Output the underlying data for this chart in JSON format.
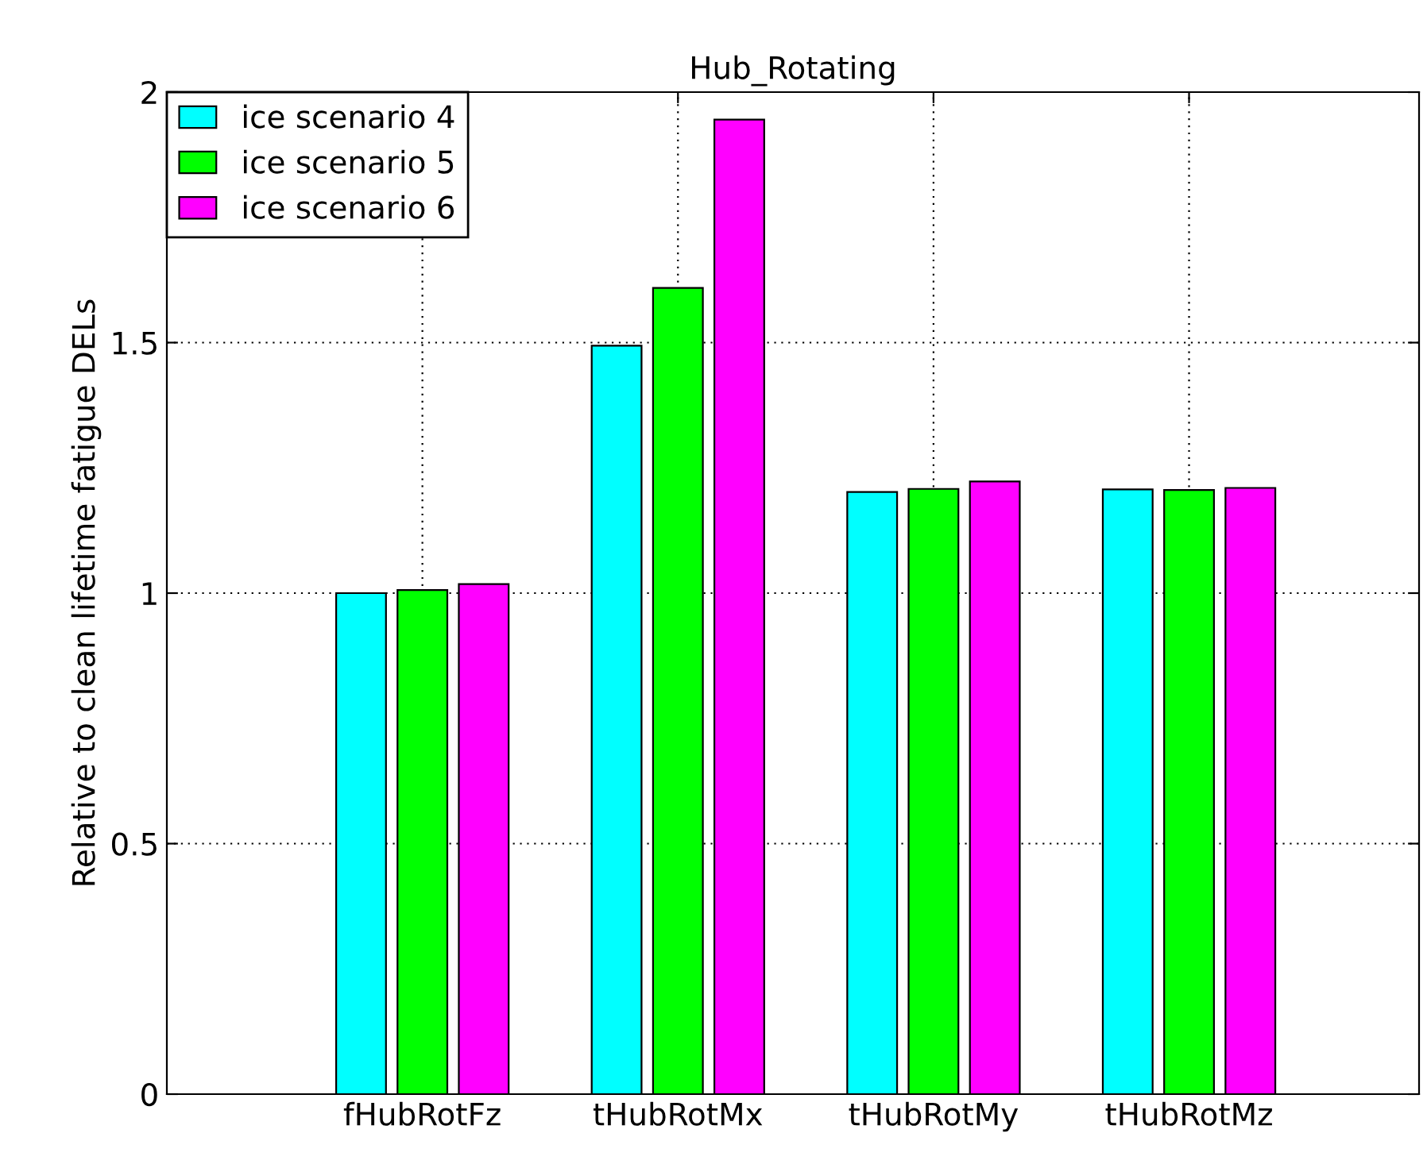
{
  "chart_data": {
    "type": "bar",
    "title": "Hub_Rotating",
    "ylabel": "Relative to clean lifetime fatigue DELs",
    "categories": [
      "fHubRotFz",
      "tHubRotMx",
      "tHubRotMy",
      "tHubRotMz"
    ],
    "series": [
      {
        "name": "ice scenario 4",
        "color": "#00ffff",
        "values": [
          1.0,
          1.494,
          1.202,
          1.207
        ]
      },
      {
        "name": "ice scenario 5",
        "color": "#00ff00",
        "values": [
          1.006,
          1.609,
          1.208,
          1.206
        ]
      },
      {
        "name": "ice scenario 6",
        "color": "#ff00ff",
        "values": [
          1.018,
          1.945,
          1.223,
          1.21
        ]
      }
    ],
    "ylim": [
      0,
      2
    ],
    "yticks": [
      0,
      0.5,
      1,
      1.5,
      2
    ],
    "grid": true,
    "legend": "top left"
  }
}
